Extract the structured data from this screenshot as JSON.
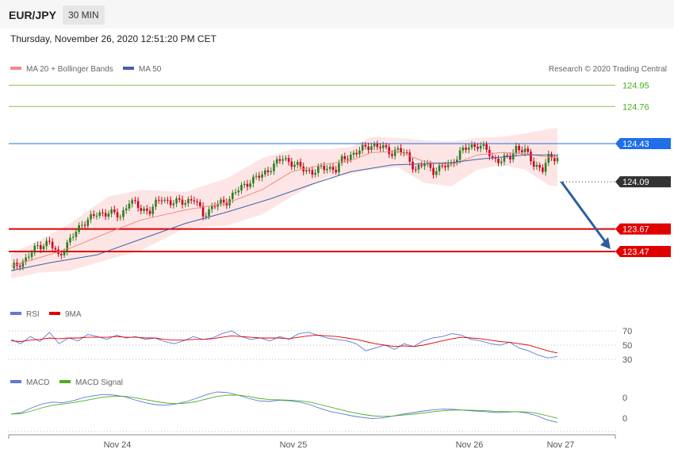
{
  "header": {
    "symbol": "EUR/JPY",
    "timeframe": "30 MIN"
  },
  "datetime": "Thursday, November 26, 2020 12:51:20 PM CET",
  "credit": "Research © 2020 Trading Central",
  "legend": {
    "main": [
      "MA 20 + Bollinger Bands",
      "MA 50"
    ],
    "rsi": [
      "RSI",
      "9MA"
    ],
    "macd": [
      "MACD",
      "MACD Signal"
    ]
  },
  "colors": {
    "up": "#2e7d1f",
    "down": "#d0021b",
    "bands": "#fde0e0",
    "ma20": "#f28b82",
    "ma50": "#3f63a8",
    "resistance": "#8bc34a",
    "pivot": "#1f6fe8",
    "support": "#e00000",
    "current": "#333333",
    "arrow": "#2d5fa0",
    "rsi": "#5b7bd5",
    "rsi9": "#e00000",
    "macd": "#5b7bd5",
    "macd_signal": "#4caf1f"
  },
  "chart_data": [
    {
      "type": "candlestick",
      "instrument": "EUR/JPY",
      "interval": "30 MIN",
      "ylim": [
        123.2,
        125.05
      ],
      "x_labels": [
        "Nov 24",
        "Nov 25",
        "Nov 26",
        "Nov 27"
      ],
      "levels": [
        {
          "value": 124.95,
          "label": "124.95",
          "kind": "resistance"
        },
        {
          "value": 124.76,
          "label": "124.76",
          "kind": "resistance"
        },
        {
          "value": 124.43,
          "label": "124.43",
          "kind": "pivot"
        },
        {
          "value": 124.09,
          "label": "124.09",
          "kind": "current"
        },
        {
          "value": 123.67,
          "label": "123.67",
          "kind": "support"
        },
        {
          "value": 123.47,
          "label": "123.47",
          "kind": "support"
        }
      ],
      "close_path": [
        [
          0,
          123.32
        ],
        [
          5,
          123.4
        ],
        [
          9,
          123.52
        ],
        [
          13,
          123.55
        ],
        [
          16,
          123.43
        ],
        [
          20,
          123.57
        ],
        [
          24,
          123.72
        ],
        [
          29,
          123.8
        ],
        [
          33,
          123.82
        ],
        [
          37,
          123.78
        ],
        [
          40,
          123.92
        ],
        [
          44,
          123.85
        ],
        [
          47,
          123.83
        ],
        [
          51,
          123.95
        ],
        [
          54,
          123.9
        ],
        [
          59,
          123.92
        ],
        [
          62,
          123.93
        ],
        [
          65,
          123.8
        ],
        [
          69,
          123.88
        ],
        [
          73,
          123.92
        ],
        [
          77,
          124.02
        ],
        [
          81,
          124.1
        ],
        [
          85,
          124.15
        ],
        [
          88,
          124.22
        ],
        [
          92,
          124.3
        ],
        [
          95,
          124.26
        ],
        [
          99,
          124.2
        ],
        [
          102,
          124.18
        ],
        [
          107,
          124.22
        ],
        [
          110,
          124.2
        ],
        [
          112,
          124.28
        ],
        [
          115,
          124.33
        ],
        [
          119,
          124.38
        ],
        [
          122,
          124.42
        ],
        [
          125,
          124.4
        ],
        [
          129,
          124.35
        ],
        [
          131,
          124.38
        ],
        [
          134,
          124.32
        ],
        [
          137,
          124.2
        ],
        [
          140,
          124.25
        ],
        [
          143,
          124.19
        ],
        [
          146,
          124.22
        ],
        [
          149,
          124.25
        ],
        [
          152,
          124.35
        ],
        [
          155,
          124.4
        ],
        [
          158,
          124.42
        ],
        [
          161,
          124.37
        ],
        [
          163,
          124.3
        ],
        [
          166,
          124.28
        ],
        [
          169,
          124.31
        ],
        [
          171,
          124.4
        ],
        [
          174,
          124.36
        ],
        [
          177,
          124.25
        ],
        [
          180,
          124.2
        ],
        [
          182,
          124.3
        ],
        [
          185,
          124.31
        ]
      ],
      "ma20_path": [
        [
          0,
          123.34
        ],
        [
          9,
          123.41
        ],
        [
          20,
          123.5
        ],
        [
          33,
          123.64
        ],
        [
          44,
          123.75
        ],
        [
          59,
          123.84
        ],
        [
          73,
          123.9
        ],
        [
          85,
          124.02
        ],
        [
          95,
          124.18
        ],
        [
          107,
          124.25
        ],
        [
          115,
          124.28
        ],
        [
          122,
          124.35
        ],
        [
          131,
          124.36
        ],
        [
          140,
          124.27
        ],
        [
          149,
          124.24
        ],
        [
          158,
          124.33
        ],
        [
          166,
          124.35
        ],
        [
          174,
          124.34
        ],
        [
          182,
          124.31
        ],
        [
          185,
          124.3
        ]
      ],
      "ma50_path": [
        [
          0,
          123.3
        ],
        [
          13,
          123.37
        ],
        [
          29,
          123.44
        ],
        [
          44,
          123.58
        ],
        [
          59,
          123.72
        ],
        [
          73,
          123.82
        ],
        [
          88,
          123.94
        ],
        [
          102,
          124.07
        ],
        [
          115,
          124.18
        ],
        [
          129,
          124.24
        ],
        [
          140,
          124.25
        ],
        [
          149,
          124.26
        ],
        [
          158,
          124.29
        ],
        [
          166,
          124.31
        ],
        [
          174,
          124.33
        ],
        [
          182,
          124.33
        ],
        [
          185,
          124.32
        ]
      ],
      "bands_upper": [
        [
          0,
          123.45
        ],
        [
          9,
          123.56
        ],
        [
          20,
          123.72
        ],
        [
          33,
          123.96
        ],
        [
          44,
          124.02
        ],
        [
          59,
          124.0
        ],
        [
          73,
          124.12
        ],
        [
          85,
          124.3
        ],
        [
          95,
          124.38
        ],
        [
          107,
          124.38
        ],
        [
          115,
          124.4
        ],
        [
          122,
          124.49
        ],
        [
          131,
          124.48
        ],
        [
          140,
          124.46
        ],
        [
          149,
          124.45
        ],
        [
          158,
          124.48
        ],
        [
          166,
          124.49
        ],
        [
          174,
          124.52
        ],
        [
          182,
          124.56
        ],
        [
          185,
          124.57
        ]
      ],
      "bands_lower": [
        [
          0,
          123.23
        ],
        [
          9,
          123.28
        ],
        [
          20,
          123.3
        ],
        [
          33,
          123.4
        ],
        [
          44,
          123.48
        ],
        [
          59,
          123.68
        ],
        [
          73,
          123.7
        ],
        [
          85,
          123.8
        ],
        [
          95,
          123.96
        ],
        [
          107,
          124.13
        ],
        [
          115,
          124.16
        ],
        [
          122,
          124.2
        ],
        [
          131,
          124.22
        ],
        [
          140,
          124.08
        ],
        [
          149,
          124.05
        ],
        [
          158,
          124.2
        ],
        [
          166,
          124.24
        ],
        [
          174,
          124.2
        ],
        [
          182,
          124.06
        ],
        [
          185,
          124.05
        ]
      ],
      "projection": {
        "from": 124.09,
        "to": 123.47,
        "direction": "down"
      }
    },
    {
      "type": "line",
      "title": "RSI",
      "yticks": [
        70,
        50,
        30
      ],
      "ylim": [
        25,
        75
      ],
      "series": [
        {
          "name": "RSI",
          "values": [
            58,
            52,
            62,
            55,
            68,
            52,
            60,
            56,
            65,
            62,
            58,
            64,
            60,
            62,
            58,
            60,
            55,
            52,
            56,
            62,
            58,
            60,
            66,
            70,
            62,
            58,
            60,
            56,
            62,
            58,
            66,
            68,
            64,
            60,
            58,
            56,
            52,
            42,
            46,
            50,
            44,
            52,
            48,
            56,
            60,
            62,
            66,
            64,
            58,
            56,
            52,
            50,
            54,
            46,
            42,
            36,
            32,
            34
          ]
        },
        {
          "name": "9MA",
          "values": [
            56,
            55,
            57,
            58,
            60,
            59,
            60,
            60,
            61,
            61,
            61,
            62,
            61,
            61,
            60,
            60,
            58,
            57,
            57,
            58,
            58,
            59,
            61,
            63,
            62,
            61,
            60,
            60,
            60,
            59,
            61,
            63,
            64,
            63,
            62,
            60,
            58,
            55,
            52,
            50,
            48,
            49,
            48,
            50,
            53,
            56,
            59,
            61,
            60,
            59,
            57,
            55,
            54,
            52,
            50,
            46,
            42,
            39
          ]
        }
      ]
    },
    {
      "type": "line",
      "title": "MACD",
      "yticks": [
        0,
        0
      ],
      "series": [
        {
          "name": "MACD",
          "values": [
            0.0,
            0.05,
            0.2,
            0.32,
            0.38,
            0.36,
            0.42,
            0.52,
            0.58,
            0.62,
            0.6,
            0.55,
            0.45,
            0.36,
            0.3,
            0.28,
            0.32,
            0.4,
            0.5,
            0.62,
            0.7,
            0.68,
            0.6,
            0.5,
            0.42,
            0.4,
            0.44,
            0.42,
            0.38,
            0.3,
            0.18,
            0.08,
            0.02,
            -0.05,
            -0.1,
            -0.14,
            -0.12,
            -0.06,
            0.0,
            0.05,
            0.1,
            0.14,
            0.16,
            0.15,
            0.12,
            0.1,
            0.08,
            0.05,
            0.06,
            0.08,
            0.04,
            -0.05,
            -0.18,
            -0.26
          ]
        },
        {
          "name": "MACD Signal",
          "values": [
            0.0,
            0.02,
            0.1,
            0.2,
            0.28,
            0.32,
            0.36,
            0.42,
            0.48,
            0.54,
            0.56,
            0.56,
            0.52,
            0.46,
            0.4,
            0.35,
            0.33,
            0.35,
            0.4,
            0.48,
            0.56,
            0.6,
            0.6,
            0.56,
            0.5,
            0.46,
            0.45,
            0.44,
            0.42,
            0.38,
            0.3,
            0.22,
            0.14,
            0.06,
            0.0,
            -0.05,
            -0.07,
            -0.06,
            -0.03,
            0.0,
            0.04,
            0.08,
            0.11,
            0.13,
            0.13,
            0.12,
            0.11,
            0.09,
            0.08,
            0.08,
            0.07,
            0.03,
            -0.05,
            -0.13
          ]
        }
      ]
    }
  ]
}
